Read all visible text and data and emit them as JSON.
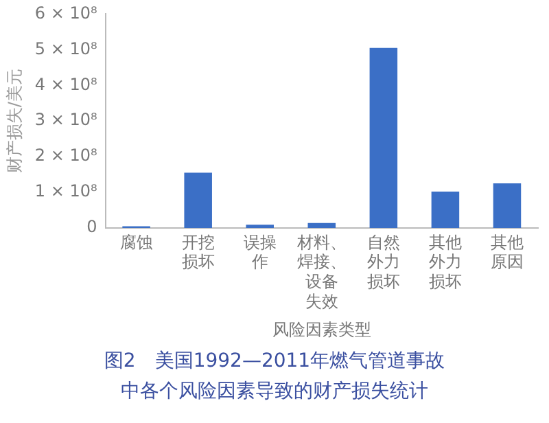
{
  "chart_data": {
    "type": "bar",
    "title": "图2　美国1992—2011年燃气管道事故中各个风险因素导致的财产损失统计",
    "xlabel": "风险因素类型",
    "ylabel": "财产损失/美元",
    "categories": [
      "腐蚀",
      "开挖损坏",
      "误操作",
      "材料、焊接、设备失效",
      "自然外力损坏",
      "其他外力损坏",
      "其他原因"
    ],
    "values": [
      5000000,
      155000000,
      9000000,
      14000000,
      505000000,
      102000000,
      125000000
    ],
    "color": "#3b6fc6",
    "ylim": [
      0,
      600000000
    ],
    "yticks": [
      0,
      {
        "value": 100000000,
        "label": "1 × 10⁸"
      },
      {
        "value": 200000000,
        "label": "2 × 10⁸"
      },
      {
        "value": 300000000,
        "label": "3 × 10⁸"
      },
      {
        "value": 400000000,
        "label": "4 × 10⁸"
      },
      {
        "value": 500000000,
        "label": "5 × 10⁸"
      },
      {
        "value": 600000000,
        "label": "6 × 10⁸"
      }
    ],
    "grid": false,
    "legend": false
  }
}
